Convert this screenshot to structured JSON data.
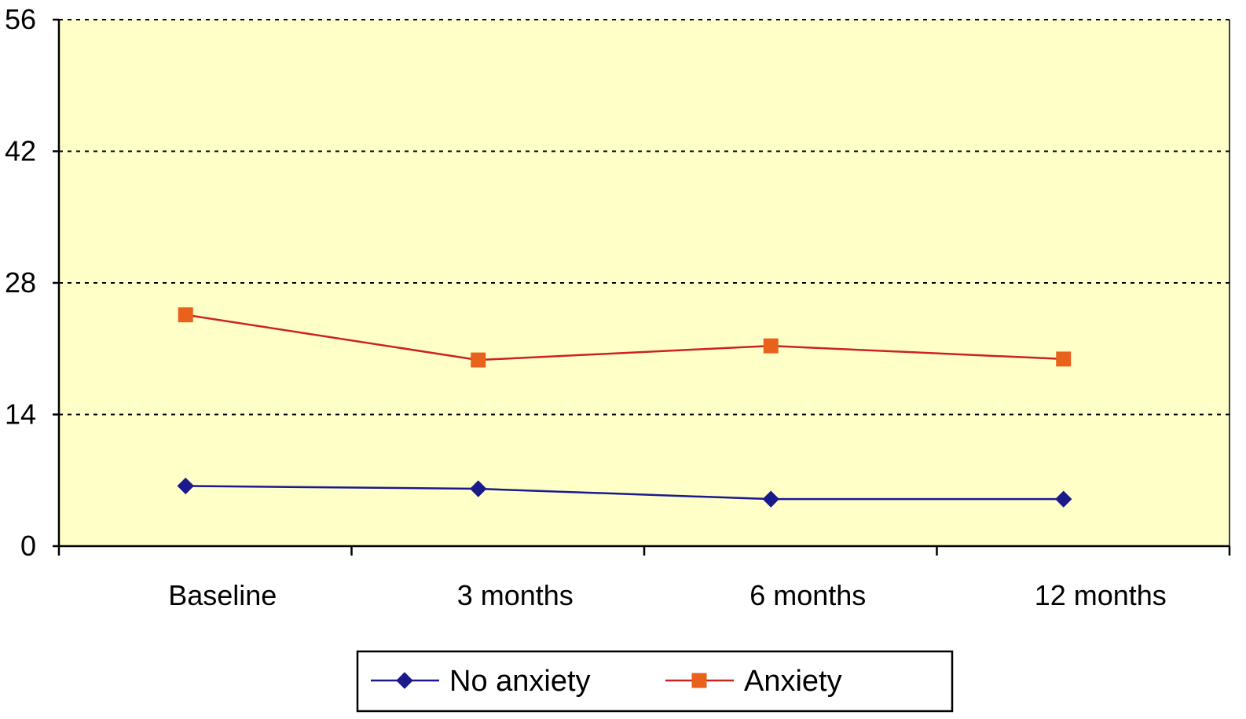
{
  "chart_data": {
    "type": "line",
    "categories": [
      "Baseline",
      "3 months",
      "6 months",
      "12 months"
    ],
    "series": [
      {
        "name": "No anxiety",
        "values": [
          6.4,
          6.1,
          5.0,
          5.0
        ],
        "color": "#1a1a8c",
        "marker": "diamond"
      },
      {
        "name": "Anxiety",
        "values": [
          24.6,
          19.8,
          21.3,
          19.9
        ],
        "color": "#cc2222",
        "marker_color": "#e8621c",
        "marker": "square"
      }
    ],
    "ylim": [
      0,
      56
    ],
    "yticks": [
      0,
      14,
      28,
      42,
      56
    ],
    "grid": true,
    "plot_background": "#ffffc8",
    "legend_position": "bottom"
  }
}
